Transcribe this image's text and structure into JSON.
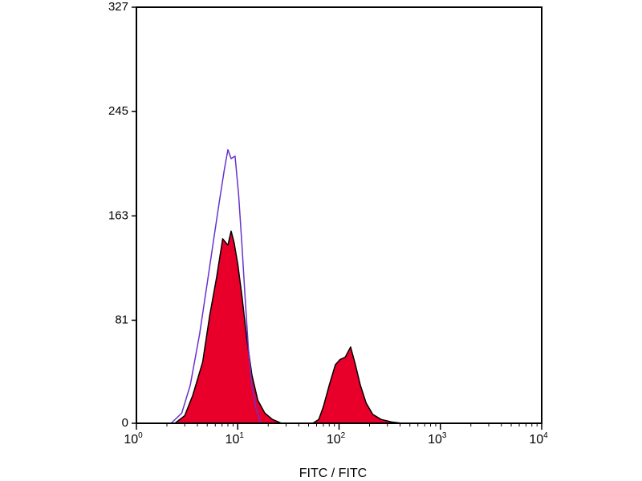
{
  "chart_data": {
    "type": "area",
    "title": "",
    "xlabel": "FITC / FITC",
    "ylabel": "",
    "x_scale": "log10",
    "xlim": [
      1,
      10000
    ],
    "ylim": [
      0,
      327
    ],
    "y_ticks": [
      0,
      81,
      163,
      245,
      327
    ],
    "y_tick_labels": [
      "0",
      "81",
      "163",
      "245",
      "327"
    ],
    "x_ticks": [
      {
        "base": "10",
        "exp": "0",
        "value": 1
      },
      {
        "base": "10",
        "exp": "1",
        "value": 10
      },
      {
        "base": "10",
        "exp": "2",
        "value": 100
      },
      {
        "base": "10",
        "exp": "3",
        "value": 1000
      },
      {
        "base": "10",
        "exp": "4",
        "value": 10000
      }
    ],
    "grid": false,
    "legend": "none",
    "series": [
      {
        "style": "filled",
        "color": "#e8002a",
        "outline": "#000000",
        "points": [
          [
            2.4,
            0
          ],
          [
            3.0,
            6
          ],
          [
            3.6,
            22
          ],
          [
            4.5,
            48
          ],
          [
            5.3,
            85
          ],
          [
            6.2,
            115
          ],
          [
            7.1,
            145
          ],
          [
            8.0,
            140
          ],
          [
            8.6,
            151
          ],
          [
            9.2,
            142
          ],
          [
            10.0,
            125
          ],
          [
            11.0,
            100
          ],
          [
            12.2,
            68
          ],
          [
            13.8,
            38
          ],
          [
            15.8,
            18
          ],
          [
            18.5,
            8
          ],
          [
            22.0,
            3
          ],
          [
            27.0,
            0
          ],
          [
            55.0,
            0
          ],
          [
            63.0,
            3
          ],
          [
            70.0,
            13
          ],
          [
            80.0,
            30
          ],
          [
            92.0,
            46
          ],
          [
            102.0,
            50
          ],
          [
            115.0,
            52
          ],
          [
            130.0,
            60
          ],
          [
            145.0,
            46
          ],
          [
            162.0,
            30
          ],
          [
            185.0,
            16
          ],
          [
            215.0,
            7
          ],
          [
            260.0,
            3
          ],
          [
            330.0,
            1
          ],
          [
            420.0,
            0
          ]
        ]
      },
      {
        "style": "line",
        "color": "#6633cc",
        "points": [
          [
            2.2,
            0
          ],
          [
            2.8,
            8
          ],
          [
            3.4,
            30
          ],
          [
            4.2,
            70
          ],
          [
            5.0,
            110
          ],
          [
            5.8,
            145
          ],
          [
            6.6,
            175
          ],
          [
            7.4,
            200
          ],
          [
            8.0,
            215
          ],
          [
            8.6,
            208
          ],
          [
            9.4,
            210
          ],
          [
            10.2,
            180
          ],
          [
            11.0,
            140
          ],
          [
            11.8,
            100
          ],
          [
            12.7,
            60
          ],
          [
            13.8,
            30
          ],
          [
            15.3,
            10
          ],
          [
            17.0,
            0
          ]
        ]
      }
    ]
  }
}
